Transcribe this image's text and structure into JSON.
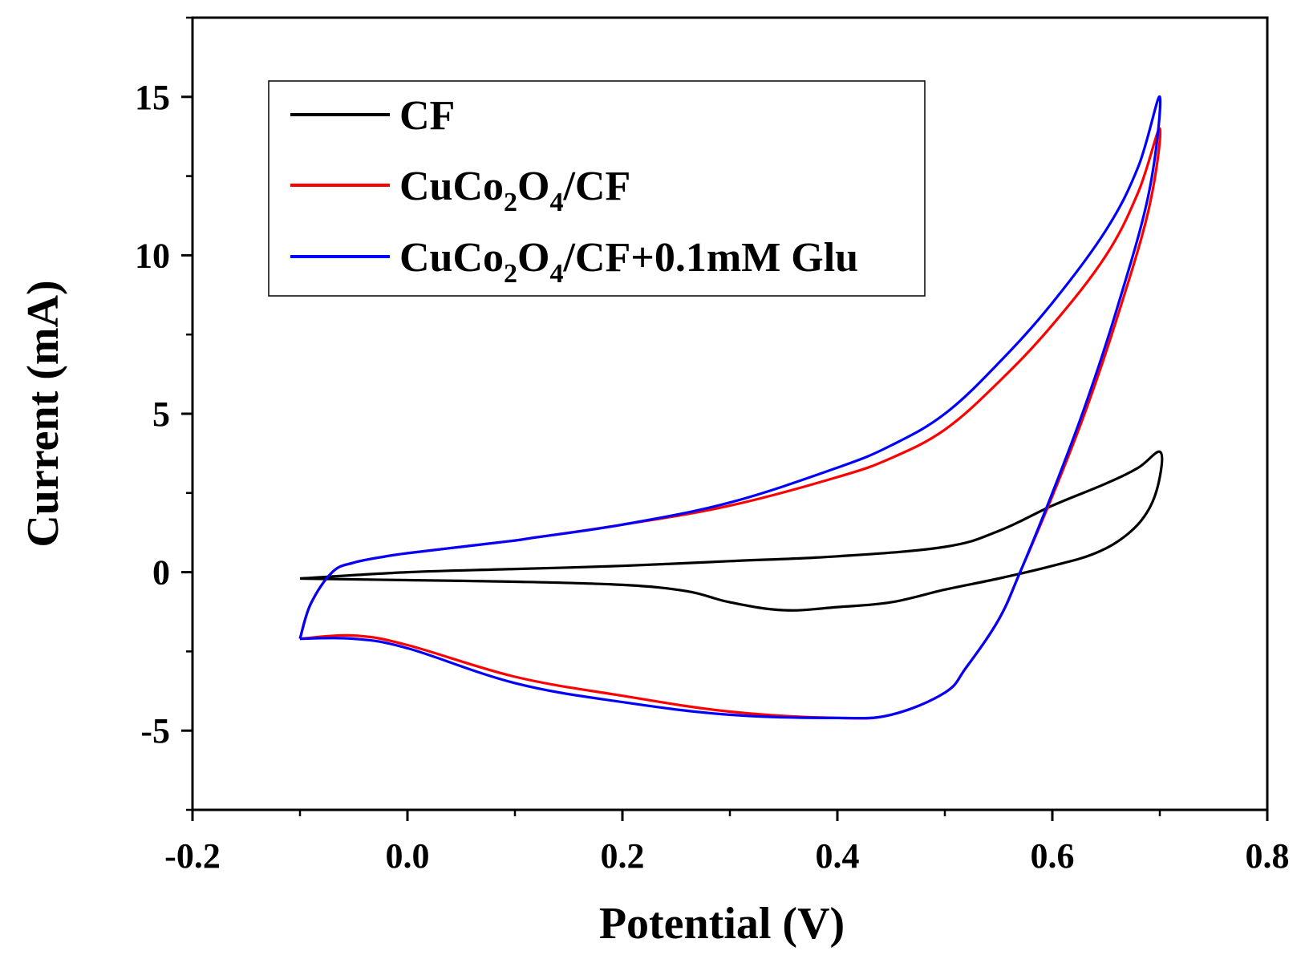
{
  "chart_data": {
    "type": "line",
    "xlabel": "Potential (V)",
    "ylabel": "Current (mA)",
    "xlim": [
      -0.2,
      0.8
    ],
    "ylim": [
      -7.5,
      17.5
    ],
    "x_ticks": [
      "-0.2",
      "0.0",
      "0.2",
      "0.4",
      "0.6",
      "0.8"
    ],
    "y_ticks": [
      "-5",
      "0",
      "5",
      "10",
      "15"
    ],
    "legend_position": "top-left",
    "grid": false,
    "series": [
      {
        "name": "CF",
        "color": "#000000",
        "x": [
          -0.1,
          0.0,
          0.1,
          0.2,
          0.3,
          0.4,
          0.5,
          0.55,
          0.6,
          0.65,
          0.68,
          0.7,
          0.7,
          0.69,
          0.67,
          0.64,
          0.6,
          0.55,
          0.5,
          0.45,
          0.4,
          0.35,
          0.3,
          0.26,
          0.2,
          0.1,
          0.0,
          -0.1
        ],
        "y": [
          -0.2,
          0.0,
          0.1,
          0.2,
          0.35,
          0.5,
          0.8,
          1.3,
          2.1,
          2.8,
          3.3,
          3.8,
          3.0,
          2.0,
          1.2,
          0.6,
          0.2,
          -0.2,
          -0.55,
          -0.95,
          -1.1,
          -1.2,
          -0.95,
          -0.6,
          -0.4,
          -0.3,
          -0.25,
          -0.2
        ]
      },
      {
        "name": "CuCo₂O₄/CF",
        "legend_parts": [
          "CuCo",
          "2",
          "O",
          "4",
          "/CF"
        ],
        "color": "#ff0000",
        "x": [
          -0.1,
          -0.09,
          -0.07,
          -0.05,
          -0.02,
          0.0,
          0.05,
          0.1,
          0.12,
          0.2,
          0.3,
          0.4,
          0.45,
          0.5,
          0.55,
          0.6,
          0.65,
          0.68,
          0.7,
          0.69,
          0.66,
          0.63,
          0.6,
          0.57,
          0.55,
          0.52,
          0.5,
          0.45,
          0.4,
          0.3,
          0.2,
          0.1,
          0.0,
          -0.05,
          -0.1
        ],
        "y": [
          -2.1,
          -1.0,
          0.0,
          0.3,
          0.5,
          0.6,
          0.8,
          1.0,
          1.1,
          1.5,
          2.1,
          3.0,
          3.6,
          4.5,
          6.0,
          7.8,
          10.0,
          12.0,
          14.0,
          11.5,
          8.0,
          5.0,
          2.4,
          0.0,
          -1.5,
          -3.0,
          -3.8,
          -4.5,
          -4.6,
          -4.4,
          -3.9,
          -3.3,
          -2.3,
          -2.0,
          -2.1
        ]
      },
      {
        "name": "CuCo₂O₄/CF+0.1mM Glu",
        "legend_parts": [
          "CuCo",
          "2",
          "O",
          "4",
          "/CF+0.1mM Glu"
        ],
        "color": "#0000ff",
        "x": [
          -0.1,
          -0.09,
          -0.07,
          -0.05,
          -0.02,
          0.0,
          0.05,
          0.1,
          0.12,
          0.2,
          0.3,
          0.4,
          0.45,
          0.5,
          0.55,
          0.6,
          0.65,
          0.68,
          0.7,
          0.69,
          0.66,
          0.63,
          0.6,
          0.57,
          0.55,
          0.52,
          0.5,
          0.45,
          0.4,
          0.3,
          0.2,
          0.1,
          0.0,
          -0.05,
          -0.1
        ],
        "y": [
          -2.1,
          -1.0,
          0.0,
          0.3,
          0.5,
          0.6,
          0.8,
          1.0,
          1.1,
          1.5,
          2.2,
          3.3,
          4.0,
          5.0,
          6.6,
          8.5,
          10.8,
          12.8,
          15.0,
          12.0,
          8.3,
          5.2,
          2.5,
          0.0,
          -1.5,
          -3.0,
          -3.8,
          -4.5,
          -4.6,
          -4.5,
          -4.1,
          -3.5,
          -2.4,
          -2.1,
          -2.1
        ]
      }
    ]
  }
}
